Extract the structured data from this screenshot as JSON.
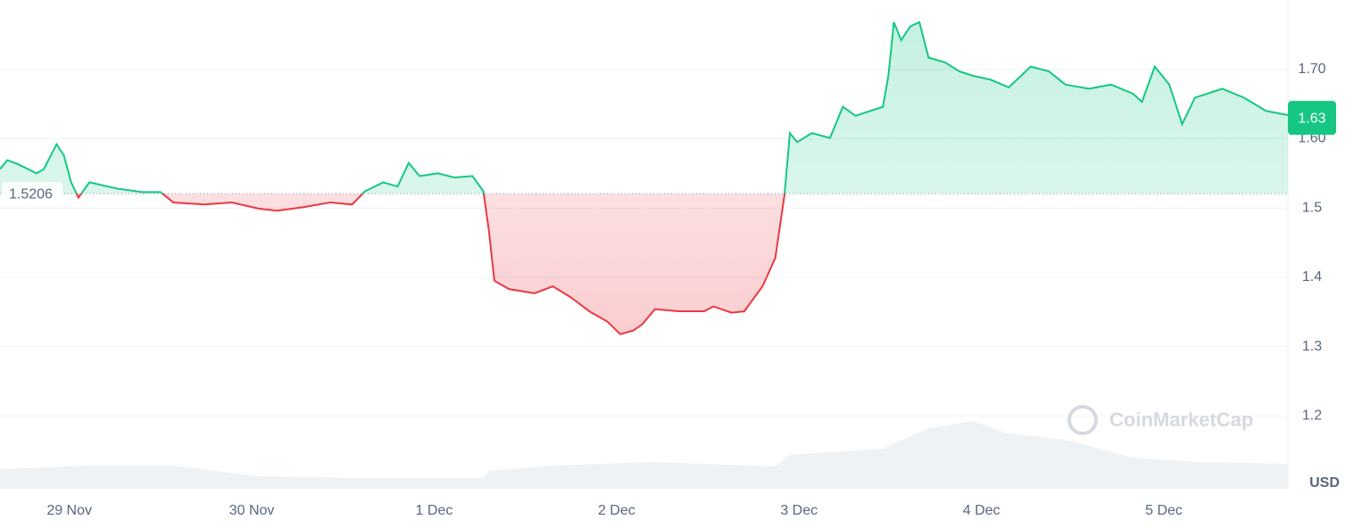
{
  "chart_data": {
    "type": "line",
    "currency": "USD",
    "watermark": "CoinMarketCap",
    "baseline": 1.5206,
    "last_price": 1.63,
    "up_color": "#16c784",
    "down_color": "#ea3943",
    "xlim": [
      0.62,
      7.68
    ],
    "ylim": [
      1.095,
      1.8
    ],
    "xticks": [
      {
        "value": 1,
        "label": "29 Nov"
      },
      {
        "value": 2,
        "label": "30 Nov"
      },
      {
        "value": 3,
        "label": "1 Dec"
      },
      {
        "value": 4,
        "label": "2 Dec"
      },
      {
        "value": 5,
        "label": "3 Dec"
      },
      {
        "value": 6,
        "label": "4 Dec"
      },
      {
        "value": 7,
        "label": "5 Dec"
      }
    ],
    "yticks": [
      {
        "value": 1.7,
        "label": "1.70"
      },
      {
        "value": 1.6,
        "label": "1.60"
      },
      1.5,
      1.4,
      1.3,
      1.2
    ],
    "grid": true,
    "x": [
      0.62,
      0.66,
      0.72,
      0.82,
      0.86,
      0.93,
      0.97,
      1.01,
      1.05,
      1.11,
      1.26,
      1.4,
      1.5,
      1.57,
      1.74,
      1.89,
      2.04,
      2.14,
      2.28,
      2.43,
      2.55,
      2.62,
      2.72,
      2.8,
      2.86,
      2.92,
      3.02,
      3.11,
      3.21,
      3.27,
      3.3,
      3.33,
      3.41,
      3.55,
      3.65,
      3.75,
      3.85,
      3.95,
      4.02,
      4.09,
      4.14,
      4.21,
      4.34,
      4.48,
      4.53,
      4.63,
      4.7,
      4.8,
      4.87,
      4.92,
      4.95,
      4.99,
      5.07,
      5.17,
      5.24,
      5.31,
      5.46,
      5.49,
      5.52,
      5.56,
      5.61,
      5.66,
      5.71,
      5.8,
      5.88,
      5.95,
      6.05,
      6.15,
      6.27,
      6.37,
      6.46,
      6.59,
      6.71,
      6.83,
      6.88,
      6.95,
      7.03,
      7.1,
      7.17,
      7.32,
      7.44,
      7.56,
      7.68
    ],
    "values": [
      1.556,
      1.569,
      1.563,
      1.55,
      1.556,
      1.592,
      1.576,
      1.537,
      1.515,
      1.537,
      1.528,
      1.523,
      1.523,
      1.508,
      1.505,
      1.508,
      1.499,
      1.496,
      1.501,
      1.508,
      1.505,
      1.524,
      1.537,
      1.531,
      1.565,
      1.546,
      1.55,
      1.544,
      1.546,
      1.524,
      1.467,
      1.395,
      1.383,
      1.377,
      1.387,
      1.371,
      1.351,
      1.336,
      1.318,
      1.323,
      1.332,
      1.354,
      1.351,
      1.351,
      1.358,
      1.349,
      1.351,
      1.387,
      1.428,
      1.518,
      1.608,
      1.595,
      1.608,
      1.601,
      1.646,
      1.633,
      1.646,
      1.691,
      1.768,
      1.742,
      1.762,
      1.768,
      1.717,
      1.71,
      1.697,
      1.691,
      1.685,
      1.674,
      1.704,
      1.697,
      1.678,
      1.672,
      1.678,
      1.665,
      1.653,
      1.704,
      1.678,
      1.621,
      1.659,
      1.672,
      1.659,
      1.64,
      1.634
    ],
    "volume": {
      "color": "#eff2f5",
      "vlim": [
        0,
        300
      ],
      "x": [
        0.62,
        1.11,
        1.57,
        2.04,
        2.55,
        3.27,
        3.3,
        3.65,
        4.21,
        4.87,
        4.95,
        5.46,
        5.71,
        5.95,
        6.15,
        6.46,
        6.83,
        7.17,
        7.68
      ],
      "values": [
        22,
        26,
        26,
        14,
        12,
        12,
        20,
        26,
        30,
        25,
        38,
        45,
        68,
        76,
        62,
        55,
        35,
        30,
        28
      ]
    }
  }
}
